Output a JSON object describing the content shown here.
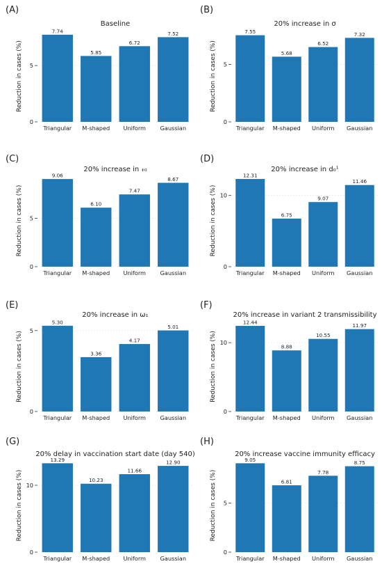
{
  "figure": {
    "ylabel": "Reduction in cases (%)",
    "categories": [
      "Triangular",
      "M-shaped",
      "Uniform",
      "Gaussian"
    ],
    "bar_color": "#1f77b4",
    "grid_color": "#e6e6e6"
  },
  "chart_data": [
    {
      "panel": "(A)",
      "type": "bar",
      "title": "Baseline",
      "xlabel": "",
      "ylabel": "Reduction in cases (%)",
      "categories": [
        "Triangular",
        "M-shaped",
        "Uniform",
        "Gaussian"
      ],
      "values": [
        7.74,
        5.85,
        6.72,
        7.52
      ],
      "labels": [
        "7.74",
        "5.85",
        "6.72",
        "7.52"
      ],
      "yticks": [
        0,
        5
      ],
      "ylim": [
        0,
        8.1
      ],
      "grid": true
    },
    {
      "panel": "(B)",
      "type": "bar",
      "title": "20% increase in σ",
      "xlabel": "",
      "ylabel": "Reduction in cases (%)",
      "categories": [
        "Triangular",
        "M-shaped",
        "Uniform",
        "Gaussian"
      ],
      "values": [
        7.55,
        5.68,
        6.52,
        7.32
      ],
      "labels": [
        "7.55",
        "5.68",
        "6.52",
        "7.32"
      ],
      "yticks": [
        0,
        5
      ],
      "ylim": [
        0,
        7.95
      ],
      "grid": true
    },
    {
      "panel": "(C)",
      "type": "bar",
      "title": "20% increase in 𝓇₀",
      "xlabel": "",
      "ylabel": "Reduction in cases (%)",
      "categories": [
        "Triangular",
        "M-shaped",
        "Uniform",
        "Gaussian"
      ],
      "values": [
        9.06,
        6.1,
        7.47,
        8.67
      ],
      "labels": [
        "9.06",
        "6.10",
        "7.47",
        "8.67"
      ],
      "yticks": [
        0,
        5
      ],
      "ylim": [
        0,
        9.5
      ],
      "grid": true
    },
    {
      "panel": "(D)",
      "type": "bar",
      "title": "20% increase in d₀¹",
      "xlabel": "",
      "ylabel": "Reduction in cases (%)",
      "categories": [
        "Triangular",
        "M-shaped",
        "Uniform",
        "Gaussian"
      ],
      "values": [
        12.31,
        6.75,
        9.07,
        11.46
      ],
      "labels": [
        "12.31",
        "6.75",
        "9.07",
        "11.46"
      ],
      "yticks": [
        0,
        10
      ],
      "ylim": [
        0,
        12.9
      ],
      "grid": true
    },
    {
      "panel": "(E)",
      "type": "bar",
      "title": "20% increase in ω₁",
      "xlabel": "",
      "ylabel": "Reduction in cases (%)",
      "categories": [
        "Triangular",
        "M-shaped",
        "Uniform",
        "Gaussian"
      ],
      "values": [
        5.3,
        3.36,
        4.17,
        5.01
      ],
      "labels": [
        "5.30",
        "3.36",
        "4.17",
        "5.01"
      ],
      "yticks": [
        0,
        5
      ],
      "ylim": [
        0,
        5.55
      ],
      "grid": true
    },
    {
      "panel": "(F)",
      "type": "bar",
      "title": "20% increase in variant 2 transmissibility",
      "xlabel": "",
      "ylabel": "Reduction in cases (%)",
      "categories": [
        "Triangular",
        "M-shaped",
        "Uniform",
        "Gaussian"
      ],
      "values": [
        12.44,
        8.88,
        10.55,
        11.97
      ],
      "labels": [
        "12.44",
        "8.88",
        "10.55",
        "11.97"
      ],
      "yticks": [
        0,
        10
      ],
      "ylim": [
        0,
        13.05
      ],
      "grid": true
    },
    {
      "panel": "(G)",
      "type": "bar",
      "title": "20% delay in vaccination start date (day 540)",
      "xlabel": "",
      "ylabel": "Reduction in cases (%)",
      "categories": [
        "Triangular",
        "M-shaped",
        "Uniform",
        "Gaussian"
      ],
      "values": [
        13.29,
        10.23,
        11.66,
        12.9
      ],
      "labels": [
        "13.29",
        "10.23",
        "11.66",
        "12.90"
      ],
      "yticks": [
        0,
        10
      ],
      "ylim": [
        0,
        13.95
      ],
      "grid": true
    },
    {
      "panel": "(H)",
      "type": "bar",
      "title": "20% increase vaccine immunity efficacy",
      "xlabel": "",
      "ylabel": "Reduction in cases (%)",
      "categories": [
        "Triangular",
        "M-shaped",
        "Uniform",
        "Gaussian"
      ],
      "values": [
        9.05,
        6.81,
        7.78,
        8.75
      ],
      "labels": [
        "9.05",
        "6.81",
        "7.78",
        "8.75"
      ],
      "yticks": [
        0,
        5
      ],
      "ylim": [
        0,
        9.5
      ],
      "grid": true
    }
  ]
}
